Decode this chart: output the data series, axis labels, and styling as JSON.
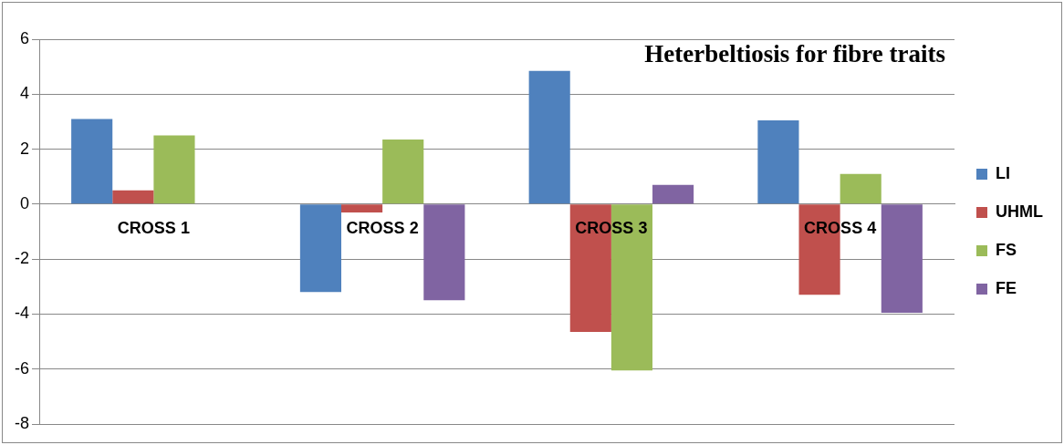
{
  "chart_data": {
    "type": "bar",
    "title": "Heterbeltiosis for fibre traits",
    "categories": [
      "CROSS 1",
      "CROSS 2",
      "CROSS 3",
      "CROSS 4"
    ],
    "series": [
      {
        "name": "LI",
        "color": "#4f81bd",
        "values": [
          3.1,
          -3.2,
          4.85,
          3.05
        ]
      },
      {
        "name": "UHML",
        "color": "#c0504d",
        "values": [
          0.5,
          -0.3,
          -4.65,
          -3.3
        ]
      },
      {
        "name": "FS",
        "color": "#9bbb59",
        "values": [
          2.5,
          2.35,
          -6.05,
          1.1
        ]
      },
      {
        "name": "FE",
        "color": "#8064a2",
        "values": [
          0,
          -3.5,
          0.7,
          -3.95
        ]
      }
    ],
    "ylim": [
      -8,
      6
    ],
    "yticks": [
      -8,
      -6,
      -4,
      -2,
      0,
      2,
      4,
      6
    ],
    "grid": "y",
    "legend": "right"
  }
}
